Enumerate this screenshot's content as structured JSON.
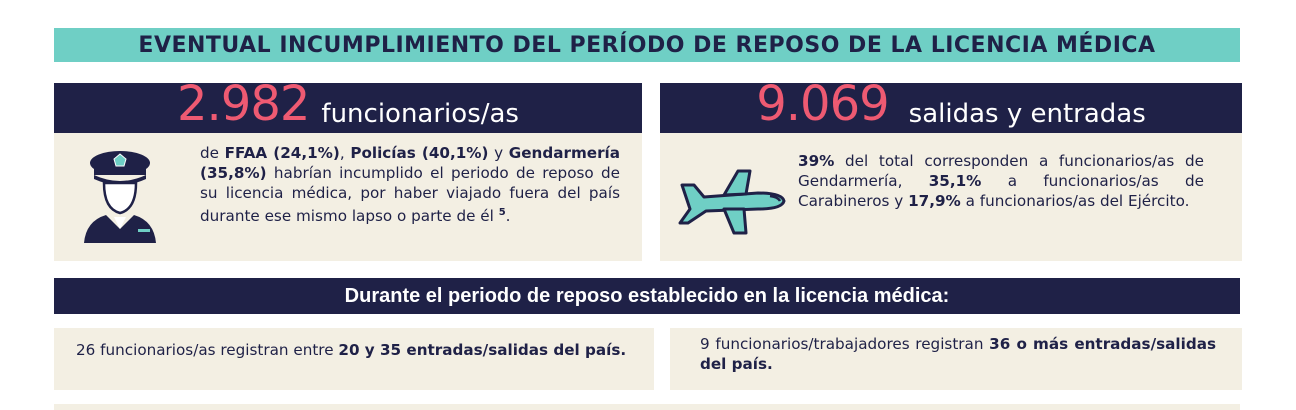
{
  "title": "EVENTUAL INCUMPLIMIENTO DEL PERÍODO DE REPOSO DE LA LICENCIA MÉDICA",
  "left_card": {
    "number": "2.982",
    "label": "funcionarios/as",
    "text_parts": [
      {
        "t": "de ",
        "b": false
      },
      {
        "t": "FFAA (24,1%)",
        "b": true
      },
      {
        "t": ", ",
        "b": false
      },
      {
        "t": "Policías (40,1%)",
        "b": true
      },
      {
        "t": " y ",
        "b": false
      },
      {
        "t": "Gendarmería (35,8%)",
        "b": true
      },
      {
        "t": " habrían incumplido el periodo de reposo de su licencia médica, por haber viajado fuera del país durante ese mismo lapso o parte de él ",
        "b": false
      }
    ],
    "footnote": "5",
    "end": ".",
    "icon": "police-officer-icon"
  },
  "right_card": {
    "number": "9.069",
    "label": "salidas y entradas",
    "text_parts": [
      {
        "t": "39%",
        "b": true
      },
      {
        "t": " del total corresponden a funcionarios/as de Gendarmería, ",
        "b": false
      },
      {
        "t": "35,1%",
        "b": true
      },
      {
        "t": " a funcionarios/as de Carabineros y ",
        "b": false
      },
      {
        "t": "17,9%",
        "b": true
      },
      {
        "t": " a funcionarios/as del Ejército.",
        "b": false
      }
    ],
    "icon": "airplane-icon"
  },
  "section_title": "Durante el periodo de reposo establecido en la licencia médica:",
  "notes": [
    {
      "parts": [
        {
          "t": "26 funcionarios/as registran entre ",
          "b": false
        },
        {
          "t": "20 y 35 entradas/salidas del país.",
          "b": true
        }
      ]
    },
    {
      "parts": [
        {
          "t": "9 funcionarios/trabajadores registran ",
          "b": false
        },
        {
          "t": "36 o más entradas/salidas del país.",
          "b": true
        }
      ]
    }
  ],
  "colors": {
    "navy": "#1f2147",
    "teal": "#6fcfc5",
    "pink": "#ee5a72",
    "beige": "#f3efe3"
  }
}
